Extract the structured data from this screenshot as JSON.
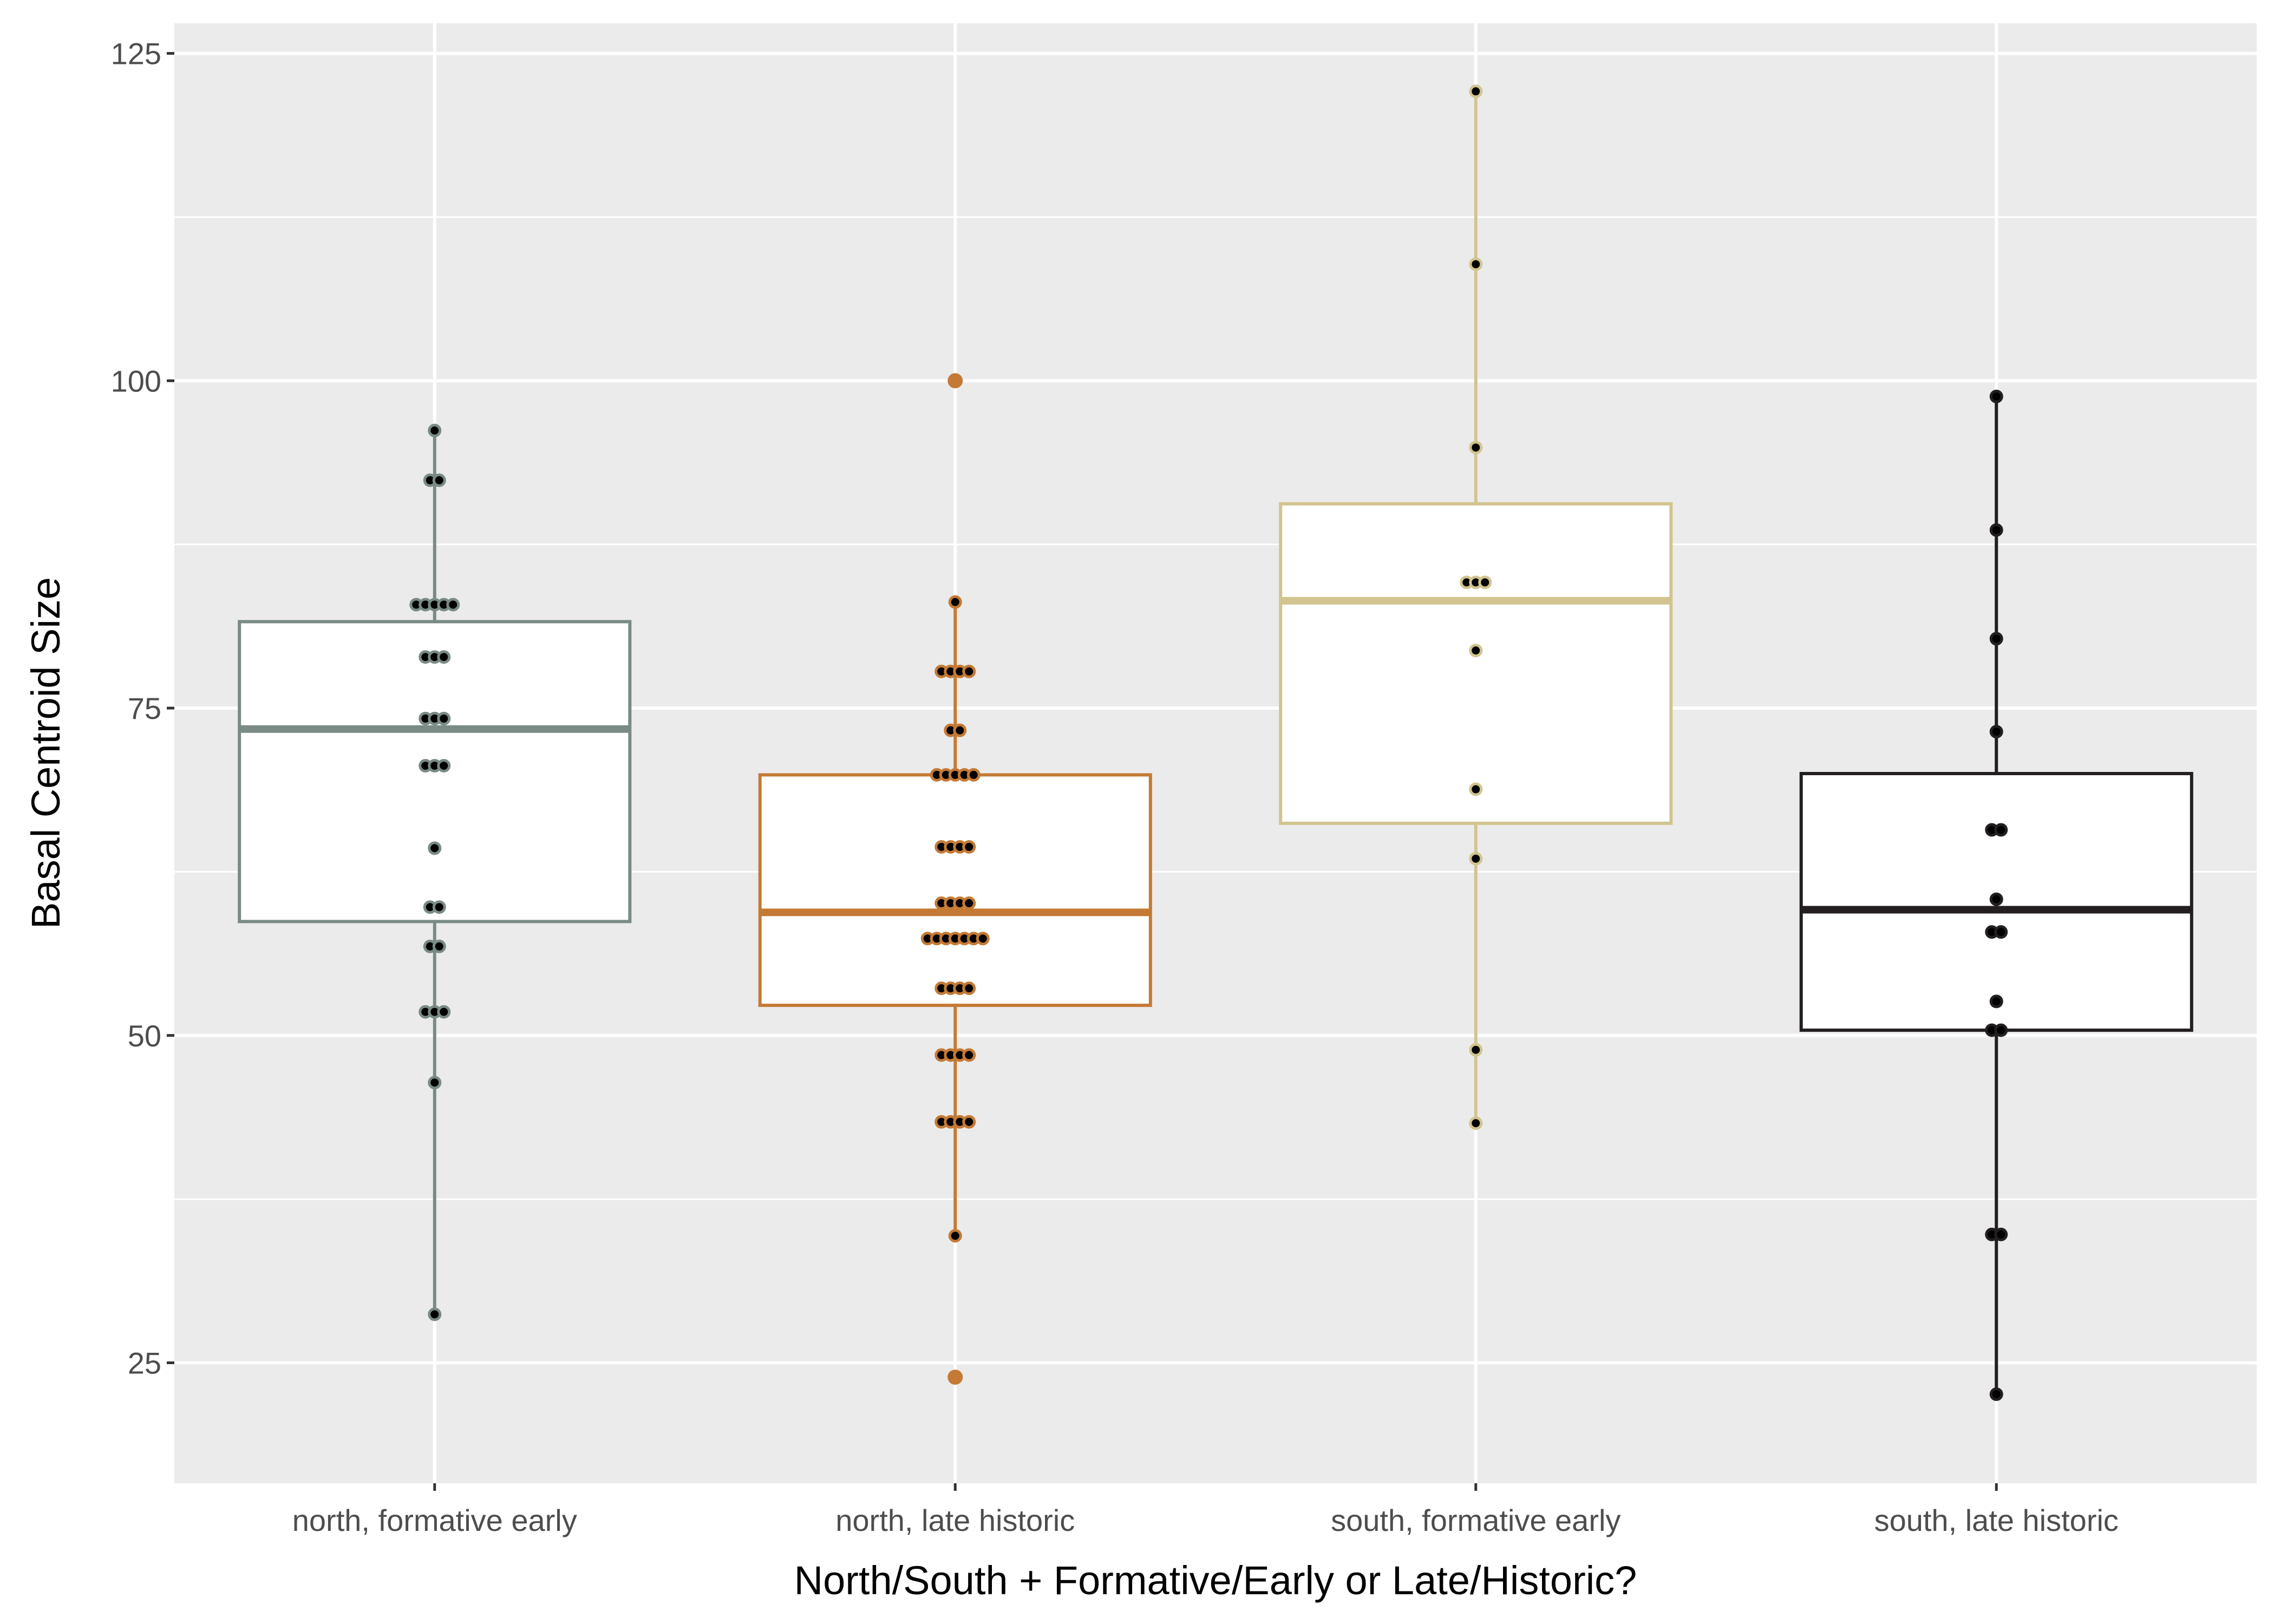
{
  "chart_data": {
    "type": "box",
    "xlabel": "North/South + Formative/Early or Late/Historic?",
    "ylabel": "Basal Centroid Size",
    "ylim": [
      15.8,
      127.3
    ],
    "yticks": [
      25,
      50,
      75,
      100,
      125
    ],
    "grid": true,
    "legend": "none",
    "categories": [
      "north, formative early",
      "north, late historic",
      "south, formative early",
      "south, late historic"
    ],
    "groups": [
      {
        "category": "north, formative early",
        "color": "#7a8a84",
        "q1": 58.7,
        "median": 73.4,
        "q3": 81.6,
        "whisker_low": 28.7,
        "whisker_high": 96.2,
        "outliers": [],
        "points": [
          {
            "y": 96.2,
            "n": 1
          },
          {
            "y": 92.4,
            "n": 2
          },
          {
            "y": 82.9,
            "n": 5
          },
          {
            "y": 78.9,
            "n": 3
          },
          {
            "y": 74.2,
            "n": 3
          },
          {
            "y": 70.6,
            "n": 3
          },
          {
            "y": 64.3,
            "n": 1
          },
          {
            "y": 59.8,
            "n": 2
          },
          {
            "y": 56.8,
            "n": 2
          },
          {
            "y": 51.8,
            "n": 3
          },
          {
            "y": 46.4,
            "n": 1
          },
          {
            "y": 28.7,
            "n": 1
          }
        ]
      },
      {
        "category": "north, late historic",
        "color": "#c47a35",
        "q1": 52.3,
        "median": 59.4,
        "q3": 69.9,
        "whisker_low": 34.7,
        "whisker_high": 83.1,
        "outliers": [
          100.0,
          23.9
        ],
        "points": [
          {
            "y": 83.1,
            "n": 1
          },
          {
            "y": 77.8,
            "n": 4
          },
          {
            "y": 73.3,
            "n": 2
          },
          {
            "y": 69.9,
            "n": 5
          },
          {
            "y": 64.4,
            "n": 4
          },
          {
            "y": 60.1,
            "n": 4
          },
          {
            "y": 57.4,
            "n": 7
          },
          {
            "y": 53.6,
            "n": 4
          },
          {
            "y": 48.5,
            "n": 4
          },
          {
            "y": 43.4,
            "n": 4
          },
          {
            "y": 34.7,
            "n": 1
          }
        ]
      },
      {
        "category": "south, formative early",
        "color": "#d1c48f",
        "q1": 66.2,
        "median": 83.2,
        "q3": 90.6,
        "whisker_low": 43.3,
        "whisker_high": 122.1,
        "outliers": [],
        "points": [
          {
            "y": 122.1,
            "n": 1
          },
          {
            "y": 108.9,
            "n": 1
          },
          {
            "y": 94.9,
            "n": 1
          },
          {
            "y": 84.6,
            "n": 3
          },
          {
            "y": 79.4,
            "n": 1
          },
          {
            "y": 68.8,
            "n": 1
          },
          {
            "y": 63.5,
            "n": 1
          },
          {
            "y": 48.9,
            "n": 1
          },
          {
            "y": 43.3,
            "n": 1
          }
        ]
      },
      {
        "category": "south, late historic",
        "color": "#231f20",
        "q1": 50.4,
        "median": 59.6,
        "q3": 70.0,
        "whisker_low": 22.6,
        "whisker_high": 98.8,
        "outliers": [],
        "points": [
          {
            "y": 98.8,
            "n": 1
          },
          {
            "y": 88.6,
            "n": 1
          },
          {
            "y": 80.3,
            "n": 1
          },
          {
            "y": 73.2,
            "n": 1
          },
          {
            "y": 65.7,
            "n": 2
          },
          {
            "y": 60.4,
            "n": 1
          },
          {
            "y": 57.9,
            "n": 2
          },
          {
            "y": 52.6,
            "n": 1
          },
          {
            "y": 50.4,
            "n": 2
          },
          {
            "y": 34.8,
            "n": 2
          },
          {
            "y": 22.6,
            "n": 1
          }
        ]
      }
    ]
  }
}
